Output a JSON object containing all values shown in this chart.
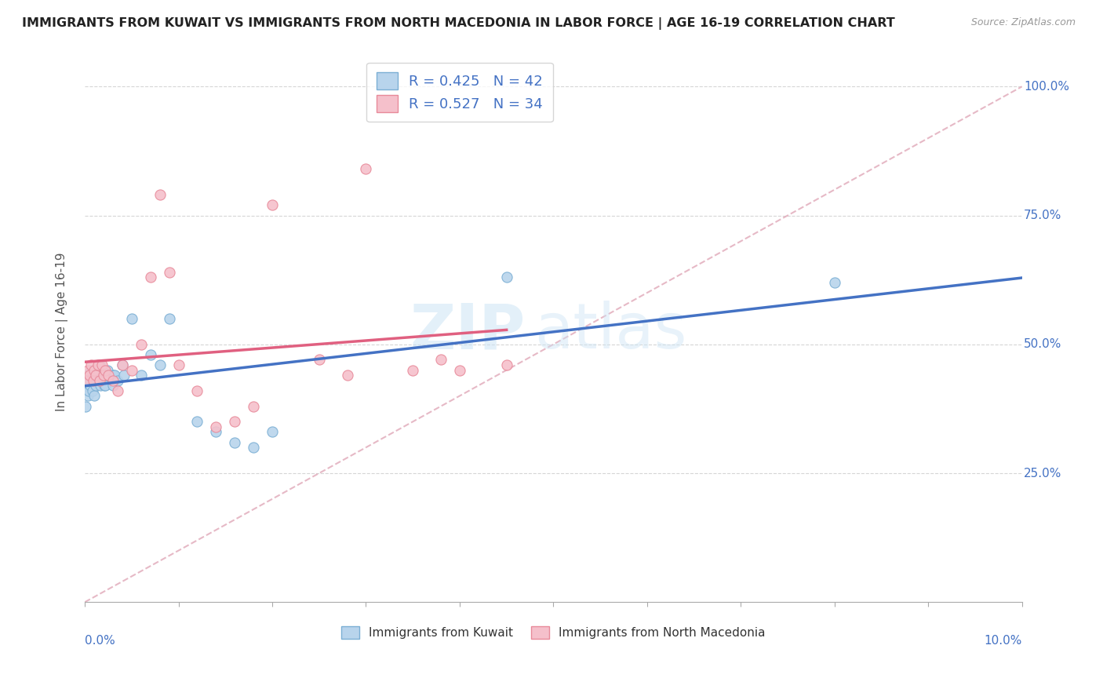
{
  "title": "IMMIGRANTS FROM KUWAIT VS IMMIGRANTS FROM NORTH MACEDONIA IN LABOR FORCE | AGE 16-19 CORRELATION CHART",
  "source": "Source: ZipAtlas.com",
  "ylabel": "In Labor Force | Age 16-19",
  "kuwait_color": "#b8d4ec",
  "kuwait_edge": "#7bafd4",
  "macedonia_color": "#f5c0cb",
  "macedonia_edge": "#e88a9a",
  "trend_kuwait_color": "#4472c4",
  "trend_macedonia_color": "#e06080",
  "ref_line_color": "#e0a0b0",
  "R_kuwait": 0.425,
  "N_kuwait": 42,
  "R_macedonia": 0.527,
  "N_macedonia": 34,
  "watermark_zip": "ZIP",
  "watermark_atlas": "atlas",
  "xlim": [
    0.0,
    0.1
  ],
  "ylim": [
    0.0,
    1.05
  ],
  "kuwait_x": [
    0.0001,
    0.0002,
    0.0003,
    0.0003,
    0.0004,
    0.0005,
    0.0006,
    0.0007,
    0.0008,
    0.0009,
    0.001,
    0.001,
    0.0011,
    0.0012,
    0.0013,
    0.0015,
    0.0016,
    0.0017,
    0.0018,
    0.002,
    0.0021,
    0.0022,
    0.0024,
    0.0025,
    0.003,
    0.003,
    0.0032,
    0.0035,
    0.004,
    0.0042,
    0.005,
    0.006,
    0.007,
    0.008,
    0.009,
    0.012,
    0.014,
    0.016,
    0.018,
    0.02,
    0.045,
    0.08
  ],
  "kuwait_y": [
    0.38,
    0.42,
    0.44,
    0.4,
    0.41,
    0.43,
    0.42,
    0.45,
    0.41,
    0.44,
    0.4,
    0.43,
    0.44,
    0.42,
    0.44,
    0.43,
    0.46,
    0.42,
    0.44,
    0.43,
    0.42,
    0.42,
    0.45,
    0.44,
    0.44,
    0.42,
    0.44,
    0.43,
    0.46,
    0.44,
    0.55,
    0.44,
    0.48,
    0.46,
    0.55,
    0.35,
    0.33,
    0.31,
    0.3,
    0.33,
    0.63,
    0.62
  ],
  "macedonia_x": [
    0.0001,
    0.0003,
    0.0005,
    0.0007,
    0.0009,
    0.001,
    0.0012,
    0.0014,
    0.0016,
    0.0018,
    0.002,
    0.0022,
    0.0025,
    0.003,
    0.0035,
    0.004,
    0.005,
    0.006,
    0.007,
    0.008,
    0.009,
    0.01,
    0.012,
    0.014,
    0.016,
    0.018,
    0.02,
    0.025,
    0.028,
    0.03,
    0.035,
    0.038,
    0.04,
    0.045
  ],
  "macedonia_y": [
    0.43,
    0.45,
    0.44,
    0.46,
    0.43,
    0.45,
    0.44,
    0.46,
    0.43,
    0.46,
    0.44,
    0.45,
    0.44,
    0.43,
    0.41,
    0.46,
    0.45,
    0.5,
    0.63,
    0.79,
    0.64,
    0.46,
    0.41,
    0.34,
    0.35,
    0.38,
    0.77,
    0.47,
    0.44,
    0.84,
    0.45,
    0.47,
    0.45,
    0.46
  ]
}
